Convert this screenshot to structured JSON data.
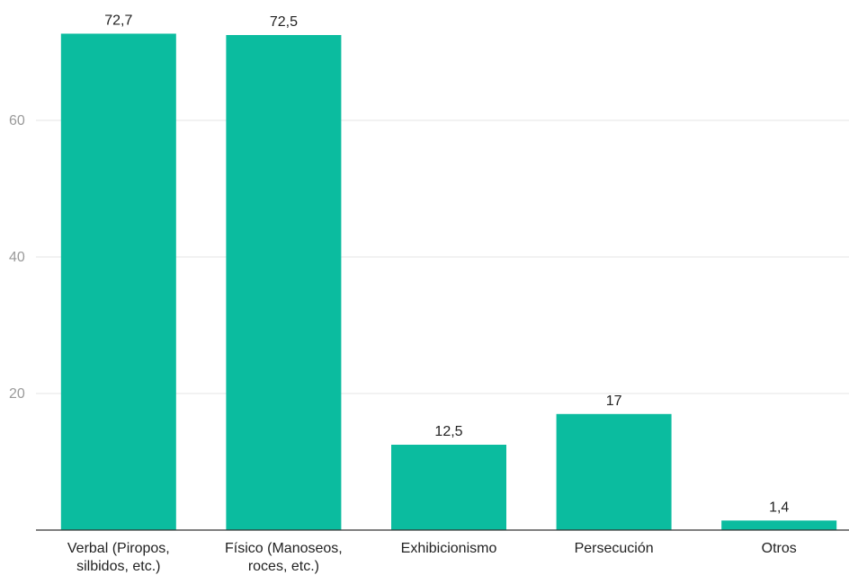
{
  "chart_data": {
    "type": "bar",
    "categories": [
      [
        "Verbal (Piropos,",
        "silbidos, etc.)"
      ],
      [
        "Físico (Manoseos,",
        "roces, etc.)"
      ],
      [
        "Exhibicionismo"
      ],
      [
        "Persecución"
      ],
      [
        "Otros"
      ]
    ],
    "values": [
      72.7,
      72.5,
      12.5,
      17,
      1.4
    ],
    "value_labels": [
      "72,7",
      "72,5",
      "12,5",
      "17",
      "1,4"
    ],
    "y_ticks": [
      20,
      40,
      60
    ],
    "ylim": [
      0,
      79
    ],
    "grid": true,
    "bar_color": "#0bbc9f",
    "title": "",
    "xlabel": "",
    "ylabel": ""
  }
}
